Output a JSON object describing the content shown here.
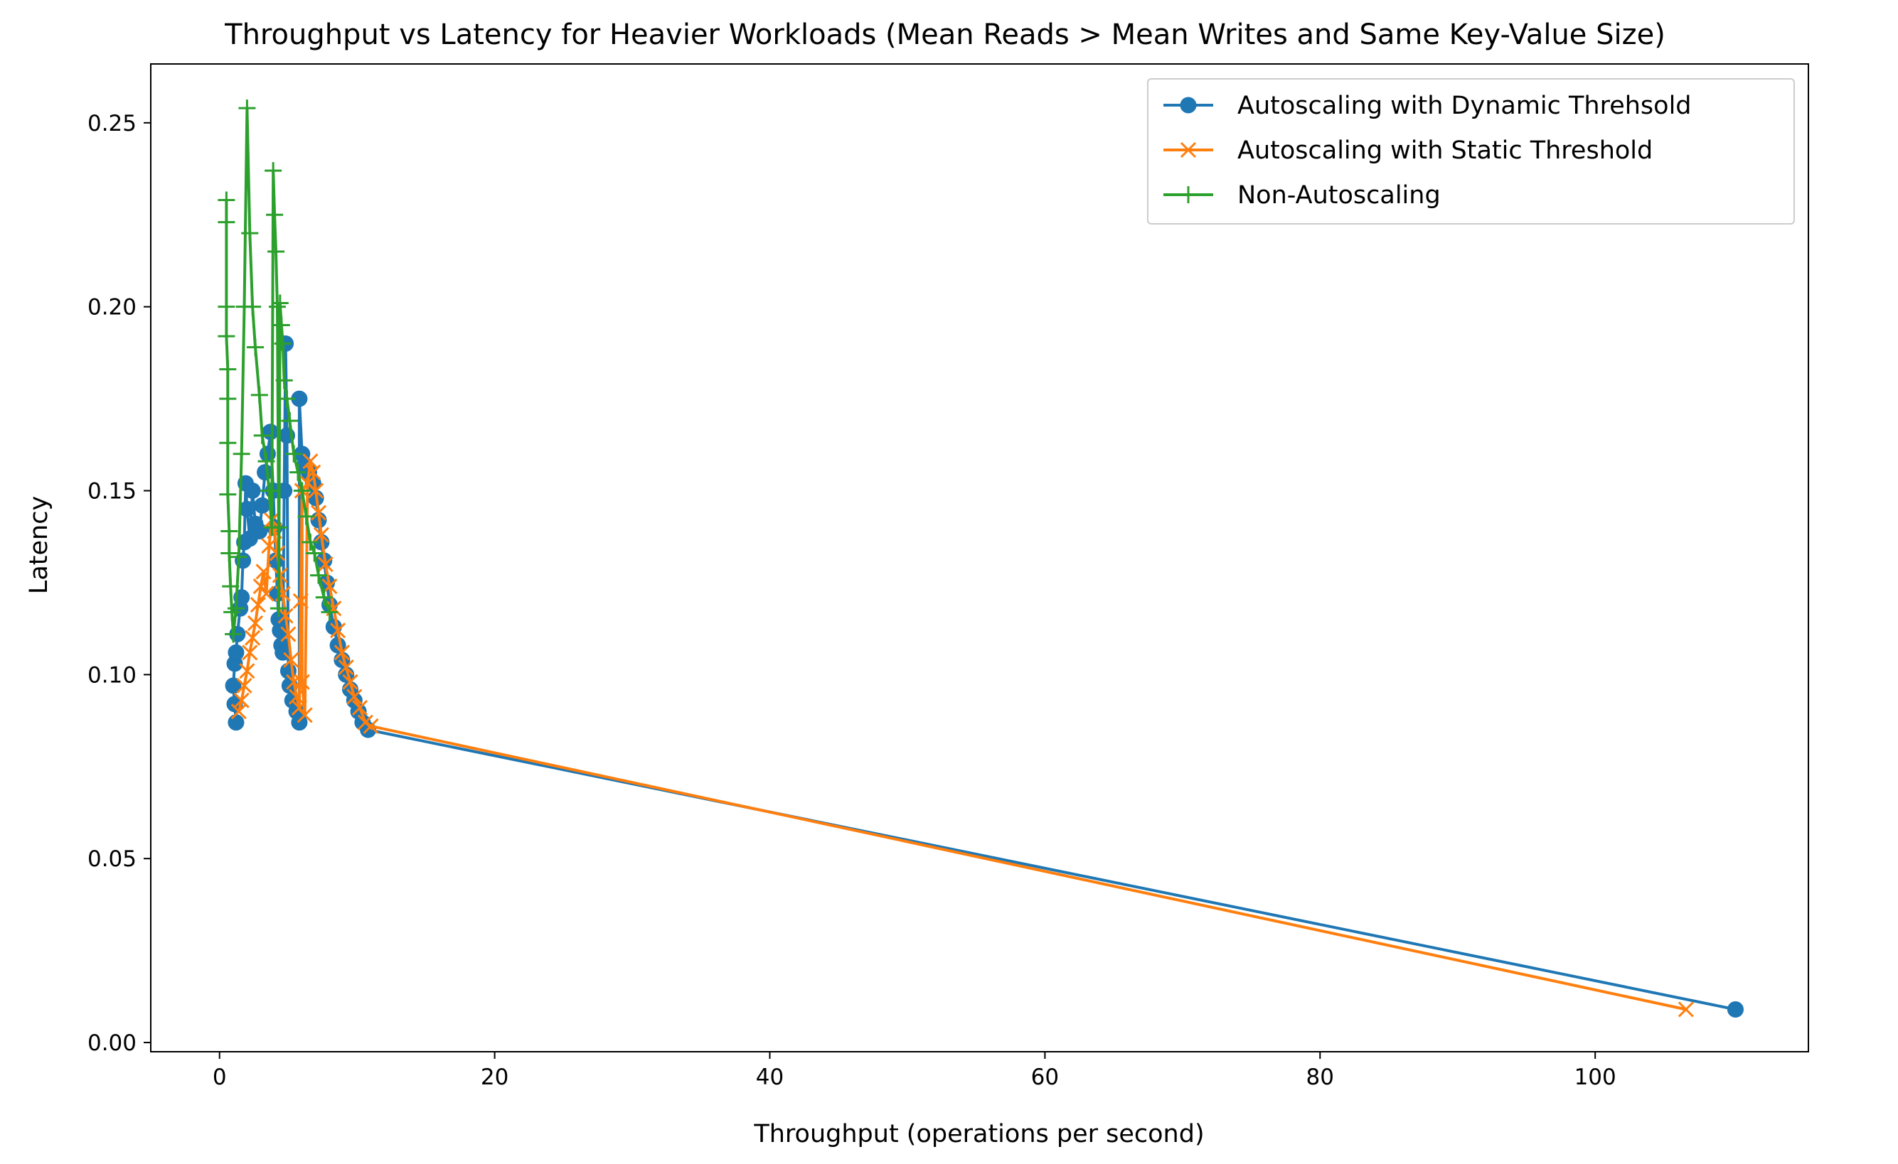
{
  "chart_data": {
    "type": "line",
    "title": "Throughput vs Latency for Heavier Workloads (Mean Reads > Mean Writes and Same Key-Value Size)",
    "xlabel": "Throughput (operations per second)",
    "ylabel": "Latency",
    "xlim": [
      -5,
      115.5
    ],
    "ylim": [
      -0.0025,
      0.266
    ],
    "xticks": [
      "0",
      "20",
      "40",
      "60",
      "80",
      "100"
    ],
    "xtick_values": [
      0,
      20,
      40,
      60,
      80,
      100
    ],
    "yticks": [
      "0.00",
      "0.05",
      "0.10",
      "0.15",
      "0.20",
      "0.25"
    ],
    "ytick_values": [
      0.0,
      0.05,
      0.1,
      0.15,
      0.2,
      0.25
    ],
    "grid": false,
    "legend_position": "top-right",
    "series": [
      {
        "name": "Autoscaling with Dynamic Threhsold",
        "color": "#1f77b4",
        "marker": "circle",
        "points": [
          [
            1.2,
            0.087
          ],
          [
            1.1,
            0.092
          ],
          [
            1.0,
            0.097
          ],
          [
            1.1,
            0.103
          ],
          [
            1.2,
            0.106
          ],
          [
            1.3,
            0.111
          ],
          [
            1.5,
            0.118
          ],
          [
            1.6,
            0.121
          ],
          [
            1.7,
            0.131
          ],
          [
            1.8,
            0.136
          ],
          [
            1.9,
            0.152
          ],
          [
            2.0,
            0.145
          ],
          [
            2.2,
            0.137
          ],
          [
            2.4,
            0.15
          ],
          [
            2.6,
            0.141
          ],
          [
            2.9,
            0.139
          ],
          [
            3.1,
            0.146
          ],
          [
            3.3,
            0.155
          ],
          [
            3.5,
            0.16
          ],
          [
            3.7,
            0.166
          ],
          [
            3.9,
            0.15
          ],
          [
            4.0,
            0.14
          ],
          [
            4.1,
            0.131
          ],
          [
            4.2,
            0.122
          ],
          [
            4.3,
            0.115
          ],
          [
            4.4,
            0.112
          ],
          [
            4.5,
            0.108
          ],
          [
            4.6,
            0.106
          ],
          [
            4.7,
            0.15
          ],
          [
            4.8,
            0.19
          ],
          [
            4.9,
            0.165
          ],
          [
            5.0,
            0.101
          ],
          [
            5.1,
            0.097
          ],
          [
            5.3,
            0.093
          ],
          [
            5.6,
            0.09
          ],
          [
            5.8,
            0.087
          ],
          [
            5.8,
            0.175
          ],
          [
            6.0,
            0.16
          ],
          [
            6.2,
            0.157
          ],
          [
            6.5,
            0.155
          ],
          [
            6.8,
            0.152
          ],
          [
            7.0,
            0.148
          ],
          [
            7.2,
            0.142
          ],
          [
            7.4,
            0.136
          ],
          [
            7.6,
            0.131
          ],
          [
            7.8,
            0.125
          ],
          [
            8.0,
            0.119
          ],
          [
            8.3,
            0.113
          ],
          [
            8.6,
            0.108
          ],
          [
            8.9,
            0.104
          ],
          [
            9.2,
            0.1
          ],
          [
            9.5,
            0.096
          ],
          [
            9.8,
            0.093
          ],
          [
            10.1,
            0.09
          ],
          [
            10.4,
            0.087
          ],
          [
            10.8,
            0.085
          ],
          [
            110.2,
            0.009
          ]
        ]
      },
      {
        "name": "Autoscaling with Static Threshold",
        "color": "#ff7f0e",
        "marker": "x",
        "points": [
          [
            1.4,
            0.09
          ],
          [
            1.6,
            0.093
          ],
          [
            1.8,
            0.097
          ],
          [
            2.0,
            0.101
          ],
          [
            2.2,
            0.106
          ],
          [
            2.4,
            0.11
          ],
          [
            2.6,
            0.114
          ],
          [
            2.8,
            0.119
          ],
          [
            3.0,
            0.124
          ],
          [
            3.2,
            0.128
          ],
          [
            3.4,
            0.122
          ],
          [
            3.6,
            0.135
          ],
          [
            3.8,
            0.142
          ],
          [
            4.0,
            0.139
          ],
          [
            4.2,
            0.133
          ],
          [
            4.4,
            0.127
          ],
          [
            4.6,
            0.122
          ],
          [
            4.8,
            0.116
          ],
          [
            5.0,
            0.111
          ],
          [
            5.2,
            0.104
          ],
          [
            5.4,
            0.098
          ],
          [
            5.6,
            0.094
          ],
          [
            5.8,
            0.091
          ],
          [
            5.9,
            0.12
          ],
          [
            6.0,
            0.15
          ],
          [
            6.0,
            0.098
          ],
          [
            6.2,
            0.089
          ],
          [
            6.4,
            0.152
          ],
          [
            6.6,
            0.158
          ],
          [
            6.8,
            0.155
          ],
          [
            7.0,
            0.15
          ],
          [
            7.2,
            0.144
          ],
          [
            7.4,
            0.138
          ],
          [
            7.7,
            0.13
          ],
          [
            8.0,
            0.124
          ],
          [
            8.3,
            0.118
          ],
          [
            8.6,
            0.112
          ],
          [
            8.9,
            0.106
          ],
          [
            9.2,
            0.102
          ],
          [
            9.5,
            0.098
          ],
          [
            9.8,
            0.094
          ],
          [
            10.2,
            0.091
          ],
          [
            10.6,
            0.087
          ],
          [
            11.0,
            0.086
          ],
          [
            106.6,
            0.009
          ]
        ]
      },
      {
        "name": "Non-Autoscaling",
        "color": "#2ca02c",
        "marker": "plus",
        "points": [
          [
            0.5,
            0.229
          ],
          [
            0.5,
            0.223
          ],
          [
            0.5,
            0.2
          ],
          [
            0.5,
            0.192
          ],
          [
            0.6,
            0.183
          ],
          [
            0.6,
            0.175
          ],
          [
            0.6,
            0.163
          ],
          [
            0.6,
            0.149
          ],
          [
            0.7,
            0.139
          ],
          [
            0.7,
            0.133
          ],
          [
            0.8,
            0.124
          ],
          [
            0.9,
            0.117
          ],
          [
            1.0,
            0.111
          ],
          [
            1.2,
            0.118
          ],
          [
            1.4,
            0.132
          ],
          [
            1.6,
            0.16
          ],
          [
            1.8,
            0.2
          ],
          [
            2.0,
            0.254
          ],
          [
            2.2,
            0.22
          ],
          [
            2.4,
            0.2
          ],
          [
            2.6,
            0.189
          ],
          [
            2.9,
            0.176
          ],
          [
            3.1,
            0.165
          ],
          [
            3.4,
            0.158
          ],
          [
            3.6,
            0.15
          ],
          [
            3.8,
            0.14
          ],
          [
            3.9,
            0.237
          ],
          [
            4.0,
            0.225
          ],
          [
            4.1,
            0.215
          ],
          [
            4.2,
            0.2
          ],
          [
            4.3,
            0.14
          ],
          [
            4.3,
            0.118
          ],
          [
            4.4,
            0.201
          ],
          [
            4.5,
            0.195
          ],
          [
            4.6,
            0.19
          ],
          [
            4.7,
            0.18
          ],
          [
            4.9,
            0.175
          ],
          [
            5.1,
            0.169
          ],
          [
            5.4,
            0.16
          ],
          [
            5.7,
            0.155
          ],
          [
            6.0,
            0.15
          ],
          [
            6.3,
            0.143
          ],
          [
            6.6,
            0.136
          ],
          [
            6.9,
            0.133
          ],
          [
            7.2,
            0.127
          ],
          [
            7.6,
            0.121
          ],
          [
            8.0,
            0.117
          ]
        ]
      }
    ]
  }
}
